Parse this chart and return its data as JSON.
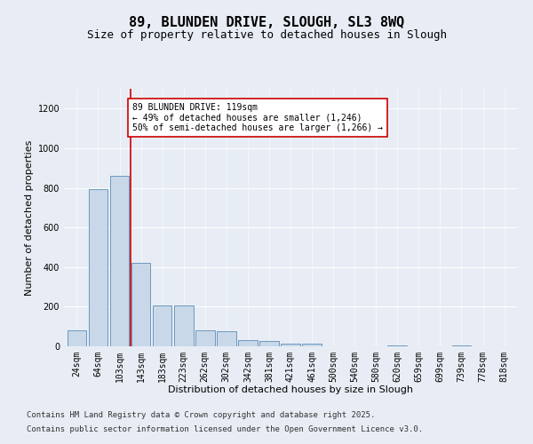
{
  "title1": "89, BLUNDEN DRIVE, SLOUGH, SL3 8WQ",
  "title2": "Size of property relative to detached houses in Slough",
  "xlabel": "Distribution of detached houses by size in Slough",
  "ylabel": "Number of detached properties",
  "categories": [
    "24sqm",
    "64sqm",
    "103sqm",
    "143sqm",
    "183sqm",
    "223sqm",
    "262sqm",
    "302sqm",
    "342sqm",
    "381sqm",
    "421sqm",
    "461sqm",
    "500sqm",
    "540sqm",
    "580sqm",
    "620sqm",
    "659sqm",
    "699sqm",
    "739sqm",
    "778sqm",
    "818sqm"
  ],
  "values": [
    80,
    795,
    860,
    420,
    205,
    205,
    80,
    75,
    30,
    25,
    12,
    12,
    2,
    0,
    0,
    5,
    0,
    0,
    3,
    0,
    0
  ],
  "bar_color": "#c8d8e8",
  "bar_edge_color": "#5b8db8",
  "vline_x": 2.5,
  "vline_color": "#cc0000",
  "annotation_text": "89 BLUNDEN DRIVE: 119sqm\n← 49% of detached houses are smaller (1,246)\n50% of semi-detached houses are larger (1,266) →",
  "annotation_box_color": "#ffffff",
  "annotation_box_edge": "#cc0000",
  "ylim": [
    0,
    1300
  ],
  "yticks": [
    0,
    200,
    400,
    600,
    800,
    1000,
    1200
  ],
  "bg_color": "#e8edf5",
  "footer1": "Contains HM Land Registry data © Crown copyright and database right 2025.",
  "footer2": "Contains public sector information licensed under the Open Government Licence v3.0.",
  "title_fontsize": 11,
  "subtitle_fontsize": 9,
  "axis_label_fontsize": 8,
  "tick_fontsize": 7,
  "annotation_fontsize": 7,
  "footer_fontsize": 6.5
}
